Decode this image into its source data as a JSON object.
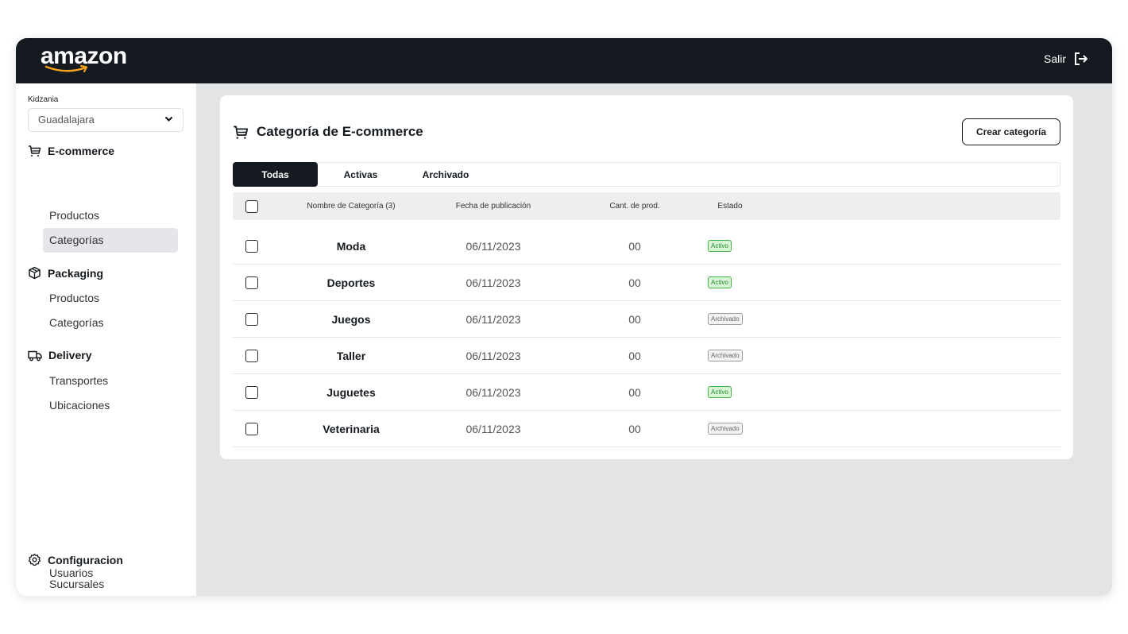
{
  "header": {
    "logo": "amazon",
    "logout_label": "Salir"
  },
  "sidebar": {
    "org_label": "Kidzania",
    "branch": "Guadalajara",
    "sections": [
      {
        "title": "E-commerce",
        "items": [
          "Productos",
          "Categorías"
        ]
      },
      {
        "title": "Packaging",
        "items": [
          "Productos",
          "Categorías"
        ]
      },
      {
        "title": "Delivery",
        "items": [
          "Transportes",
          "Ubicaciones"
        ]
      },
      {
        "title": "Configuracion",
        "items": [
          "Sucursales",
          "Usuarios"
        ]
      }
    ],
    "active_item": "E-commerce / Categorías"
  },
  "main": {
    "title": "Categoría de E-commerce",
    "create_button": "Crear categoría",
    "tabs": [
      "Todas",
      "Activas",
      "Archivado"
    ],
    "active_tab": "Todas",
    "columns": [
      "Nombre de Categoría (3)",
      "Fecha de publicación",
      "Cant. de prod.",
      "Estado"
    ],
    "rows": [
      {
        "name": "Moda",
        "date": "06/11/2023",
        "count": "00",
        "status": "Activo"
      },
      {
        "name": "Deportes",
        "date": "06/11/2023",
        "count": "00",
        "status": "Activo"
      },
      {
        "name": "Juegos",
        "date": "06/11/2023",
        "count": "00",
        "status": "Archivado"
      },
      {
        "name": "Taller",
        "date": "06/11/2023",
        "count": "00",
        "status": "Archivado"
      },
      {
        "name": "Juguetes",
        "date": "06/11/2023",
        "count": "00",
        "status": "Activo"
      },
      {
        "name": "Veterinaria",
        "date": "06/11/2023",
        "count": "00",
        "status": "Archivado"
      }
    ]
  },
  "colors": {
    "topbar": "#151a21",
    "active_badge": "#3fb345",
    "archived_badge": "#9a9a9a",
    "background": "#e2e4e6"
  }
}
